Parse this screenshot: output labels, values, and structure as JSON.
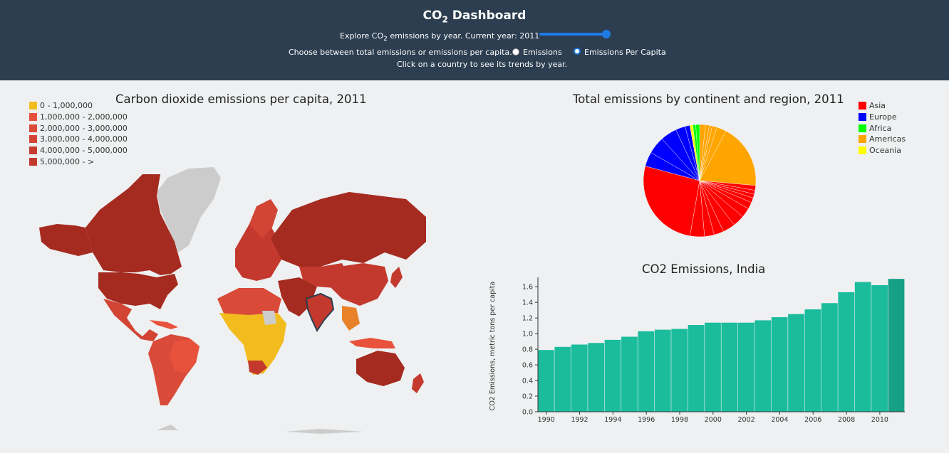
{
  "header": {
    "title_main": "CO",
    "title_sub": "2",
    "title_rest": " Dashboard",
    "year_prefix": "Explore CO",
    "year_sub": "2",
    "year_text": " emissions by year. Current year: 2011",
    "year_value": 2011,
    "slider_fraction": 1.0,
    "choice_text": "Choose between total emissions or emissions per capita.",
    "options": [
      "Emissions",
      "Emissions Per Capita"
    ],
    "selected_option": "Emissions Per Capita",
    "hint": "Click on a country to see its trends by year."
  },
  "map": {
    "title": "Carbon dioxide emissions per capita, 2011",
    "legend": [
      {
        "label": "0 - 1,000,000",
        "color": "#f2bc1f"
      },
      {
        "label": "1,000,000 - 2,000,000",
        "color": "#e8513b"
      },
      {
        "label": "2,000,000 - 3,000,000",
        "color": "#d94a38"
      },
      {
        "label": "3,000,000 - 4,000,000",
        "color": "#d24434"
      },
      {
        "label": "4,000,000 - 5,000,000",
        "color": "#c83c2f"
      },
      {
        "label": "5,000,000 - >",
        "color": "#c4392d"
      }
    ],
    "colors": {
      "dark": "#a52a1f",
      "mid": "#c4392d",
      "light": "#e8513b",
      "yellow": "#f2bc1f",
      "orange": "#e8822a",
      "nodata": "#cccccc"
    }
  },
  "pie": {
    "title": "Total emissions by continent and region, 2011",
    "legend": [
      {
        "label": "Asia",
        "color": "#ff0000"
      },
      {
        "label": "Europe",
        "color": "#0000ff"
      },
      {
        "label": "Africa",
        "color": "#00ff00"
      },
      {
        "label": "Americas",
        "color": "#ffa500"
      },
      {
        "label": "Oceania",
        "color": "#ffff00"
      }
    ]
  },
  "chart_data": {
    "type": "bar",
    "title": "CO2 Emissions, India",
    "ylabel": "CO2 Emissions, metric tons per capita",
    "xlabel": "",
    "x": [
      1990,
      1991,
      1992,
      1993,
      1994,
      1995,
      1996,
      1997,
      1998,
      1999,
      2000,
      2001,
      2002,
      2003,
      2004,
      2005,
      2006,
      2007,
      2008,
      2009,
      2010,
      2011
    ],
    "values": [
      0.79,
      0.83,
      0.86,
      0.88,
      0.92,
      0.96,
      1.03,
      1.05,
      1.06,
      1.11,
      1.14,
      1.14,
      1.14,
      1.17,
      1.21,
      1.25,
      1.31,
      1.39,
      1.53,
      1.66,
      1.62,
      1.7
    ],
    "ylim": [
      0,
      1.72
    ],
    "yticks": [
      "0.0",
      "0.2",
      "0.4",
      "0.6",
      "0.8",
      "1.0",
      "1.2",
      "1.4",
      "1.6"
    ],
    "xticks": [
      "1990",
      "1992",
      "1994",
      "1996",
      "1998",
      "2000",
      "2002",
      "2004",
      "2006",
      "2008",
      "2010"
    ],
    "bar_color": "#1abc9c",
    "highlight_color": "#16a085",
    "highlight_year": 2011
  }
}
